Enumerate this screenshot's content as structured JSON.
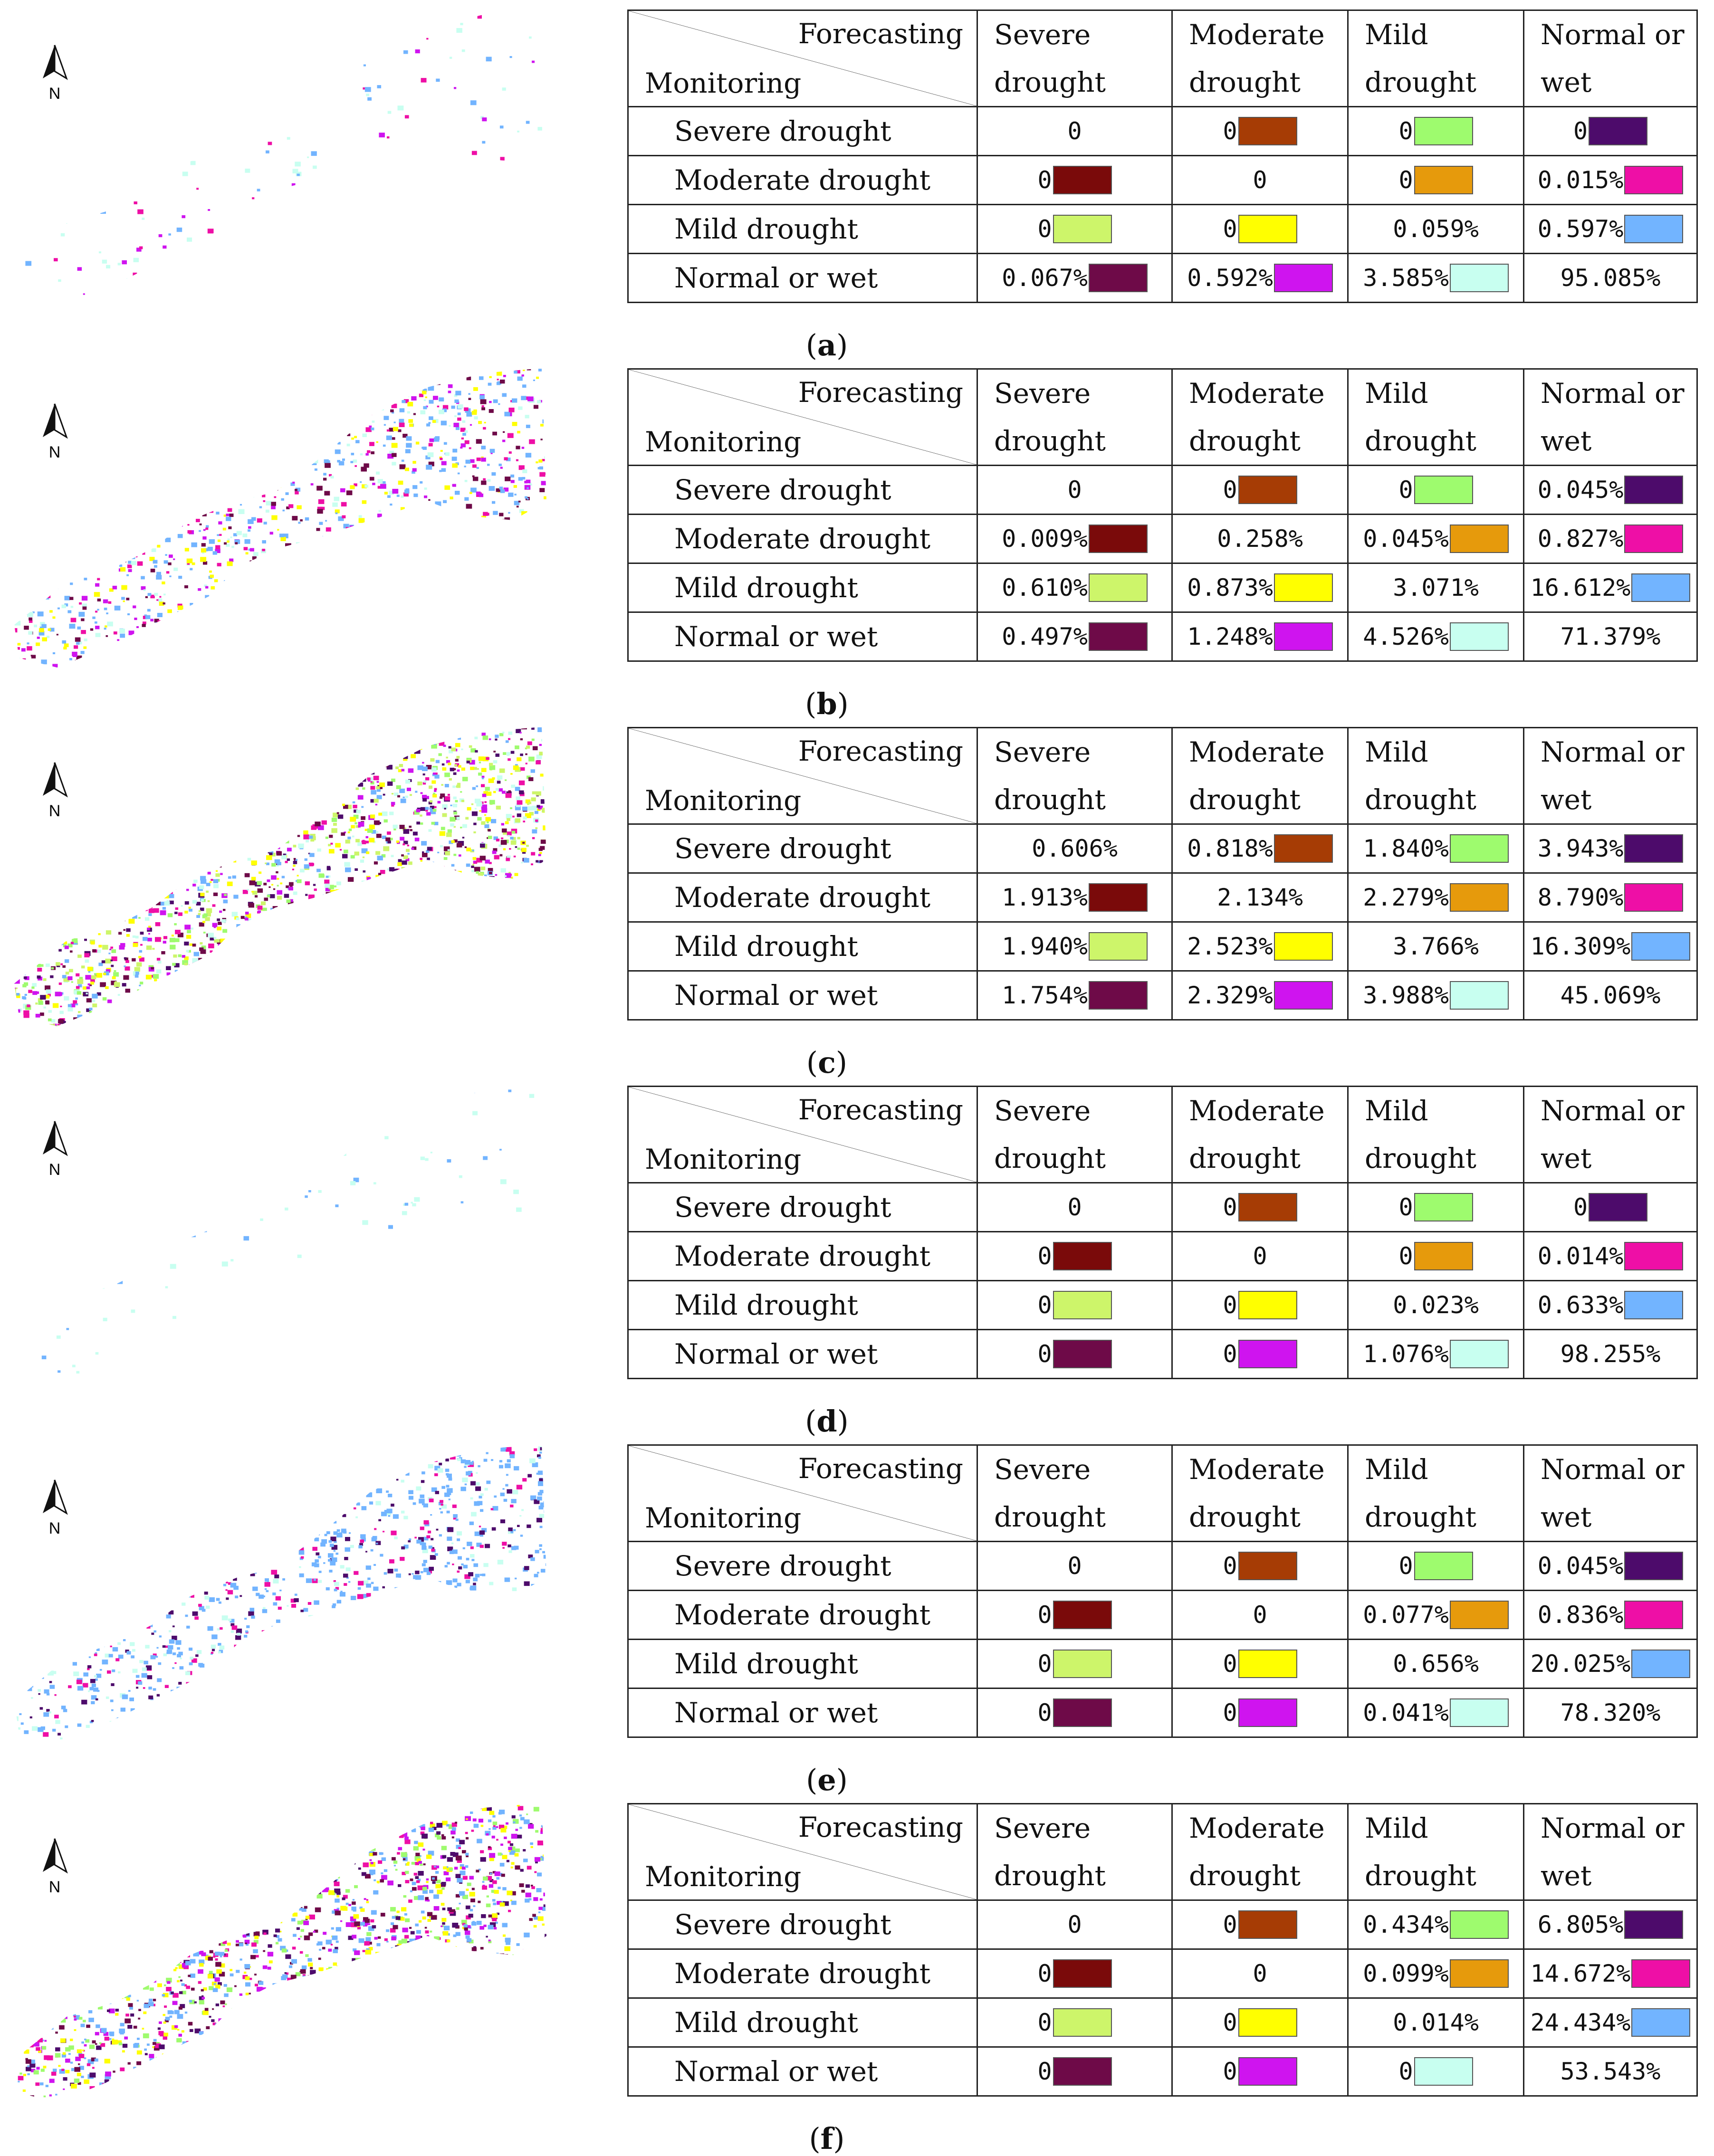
{
  "header": {
    "forecasting": "Forecasting",
    "monitoring": "Monitoring"
  },
  "columns": [
    [
      "Severe",
      "drought"
    ],
    [
      "Moderate",
      "drought"
    ],
    [
      "Mild",
      "drought"
    ],
    [
      "Normal or",
      "wet"
    ]
  ],
  "row_labels": [
    "Severe drought",
    "Moderate drought",
    "Mild drought",
    "Normal or wet"
  ],
  "north_label": "N",
  "swatches": [
    [
      "",
      "#a63c05",
      "#9efb6e",
      "#4d0b6b"
    ],
    [
      "#7a0a0a",
      "",
      "#e69a0c",
      "#ee0fa6"
    ],
    [
      "#cdf56a",
      "#ffff00",
      "",
      "#72b4ff"
    ],
    [
      "#6e0a48",
      "#cf14ef",
      "#c8fff0",
      ""
    ]
  ],
  "panels": [
    {
      "id": "a",
      "caption": "a",
      "cells": [
        [
          "0",
          "0",
          "0",
          "0"
        ],
        [
          "0",
          "0",
          "0",
          "0.015%"
        ],
        [
          "0",
          "0",
          "0.059%",
          "0.597%"
        ],
        [
          "0.067%",
          "0.592%",
          "3.585%",
          "95.085%"
        ]
      ]
    },
    {
      "id": "b",
      "caption": "b",
      "cells": [
        [
          "0",
          "0",
          "0",
          "0.045%"
        ],
        [
          "0.009%",
          "0.258%",
          "0.045%",
          "0.827%"
        ],
        [
          "0.610%",
          "0.873%",
          "3.071%",
          "16.612%"
        ],
        [
          "0.497%",
          "1.248%",
          "4.526%",
          "71.379%"
        ]
      ]
    },
    {
      "id": "c",
      "caption": "c",
      "cells": [
        [
          "0.606%",
          "0.818%",
          "1.840%",
          "3.943%"
        ],
        [
          "1.913%",
          "2.134%",
          "2.279%",
          "8.790%"
        ],
        [
          "1.940%",
          "2.523%",
          "3.766%",
          "16.309%"
        ],
        [
          "1.754%",
          "2.329%",
          "3.988%",
          "45.069%"
        ]
      ]
    },
    {
      "id": "d",
      "caption": "d",
      "cells": [
        [
          "0",
          "0",
          "0",
          "0"
        ],
        [
          "0",
          "0",
          "0",
          "0.014%"
        ],
        [
          "0",
          "0",
          "0.023%",
          "0.633%"
        ],
        [
          "0",
          "0",
          "1.076%",
          "98.255%"
        ]
      ]
    },
    {
      "id": "e",
      "caption": "e",
      "cells": [
        [
          "0",
          "0",
          "0",
          "0.045%"
        ],
        [
          "0",
          "0",
          "0.077%",
          "0.836%"
        ],
        [
          "0",
          "0",
          "0.656%",
          "20.025%"
        ],
        [
          "0",
          "0",
          "0.041%",
          "78.320%"
        ]
      ]
    },
    {
      "id": "f",
      "caption": "f",
      "cells": [
        [
          "0",
          "0",
          "0.434%",
          "6.805%"
        ],
        [
          "0",
          "0",
          "0.099%",
          "14.672%"
        ],
        [
          "0",
          "0",
          "0.014%",
          "24.434%"
        ],
        [
          "0",
          "0",
          "0",
          "53.543%"
        ]
      ]
    }
  ],
  "map_density": [
    0.06,
    0.55,
    0.9,
    0.04,
    0.5,
    0.85
  ]
}
